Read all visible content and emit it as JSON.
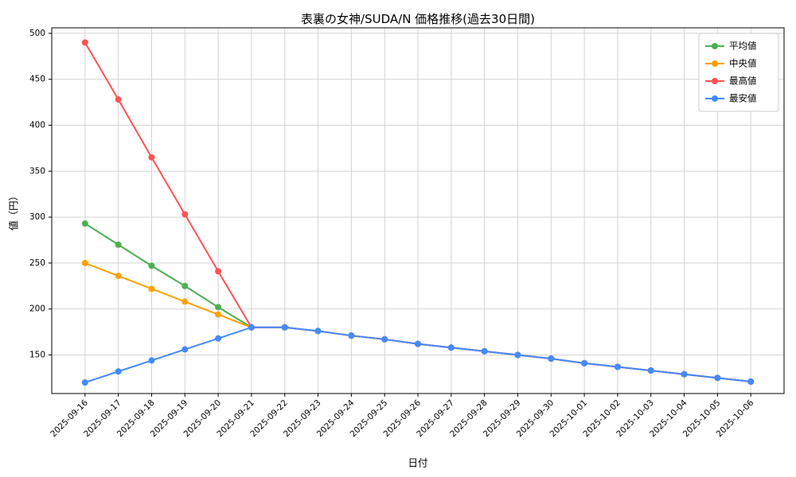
{
  "chart_data": {
    "type": "line",
    "title": "表裏の女神/SUDA/N  価格推移(過去30日間)",
    "xlabel": "日付",
    "ylabel": "値（円）",
    "ylim": [
      108,
      506
    ],
    "yticks": [
      150,
      200,
      250,
      300,
      350,
      400,
      450,
      500
    ],
    "grid": true,
    "legend_position": "upper right",
    "categories": [
      "2025-09-16",
      "2025-09-17",
      "2025-09-18",
      "2025-09-19",
      "2025-09-20",
      "2025-09-21",
      "2025-09-22",
      "2025-09-23",
      "2025-09-24",
      "2025-09-25",
      "2025-09-26",
      "2025-09-27",
      "2025-09-28",
      "2025-09-29",
      "2025-09-30",
      "2025-10-01",
      "2025-10-02",
      "2025-10-03",
      "2025-10-04",
      "2025-10-05",
      "2025-10-06"
    ],
    "series": [
      {
        "key": "mean",
        "name": "平均値",
        "color": "#4caf50",
        "values": [
          293,
          270,
          247,
          225,
          202,
          180,
          180,
          176,
          171,
          167,
          162,
          158,
          154,
          150,
          146,
          141,
          137,
          133,
          129,
          125,
          121
        ]
      },
      {
        "key": "median",
        "name": "中央値",
        "color": "#ffa000",
        "values": [
          250,
          236,
          222,
          208,
          194,
          180,
          180,
          176,
          171,
          167,
          162,
          158,
          154,
          150,
          146,
          141,
          137,
          133,
          129,
          125,
          121
        ]
      },
      {
        "key": "max",
        "name": "最高値",
        "color": "#ff5252",
        "values": [
          490,
          428,
          365,
          303,
          241,
          180,
          180,
          176,
          171,
          167,
          162,
          158,
          154,
          150,
          146,
          141,
          137,
          133,
          129,
          125,
          121
        ]
      },
      {
        "key": "min",
        "name": "最安値",
        "color": "#448aff",
        "values": [
          120,
          132,
          144,
          156,
          168,
          180,
          180,
          176,
          171,
          167,
          162,
          158,
          154,
          150,
          146,
          141,
          137,
          133,
          129,
          125,
          121
        ]
      }
    ]
  }
}
